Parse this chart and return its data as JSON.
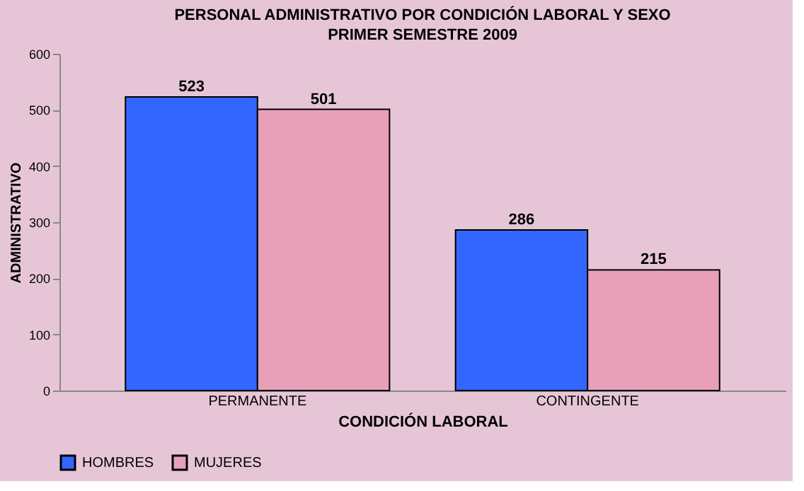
{
  "chart_data": {
    "type": "bar",
    "title": "PERSONAL ADMINISTRATIVO POR CONDICIÓN LABORAL Y SEXO",
    "subtitle": "PRIMER SEMESTRE  2009",
    "categories": [
      "PERMANENTE",
      "CONTINGENTE"
    ],
    "series": [
      {
        "name": "HOMBRES",
        "color": "#3366ff",
        "values": [
          523,
          286
        ]
      },
      {
        "name": "MUJERES",
        "color": "#e8a0b8",
        "values": [
          501,
          215
        ]
      }
    ],
    "xlabel": "CONDICIÓN LABORAL",
    "ylabel": "ADMINISTRATIVO",
    "ylim": [
      0,
      600
    ],
    "yticks": [
      0,
      100,
      200,
      300,
      400,
      500,
      600
    ],
    "data_labels": true,
    "legend": "bottom",
    "grid": false
  }
}
